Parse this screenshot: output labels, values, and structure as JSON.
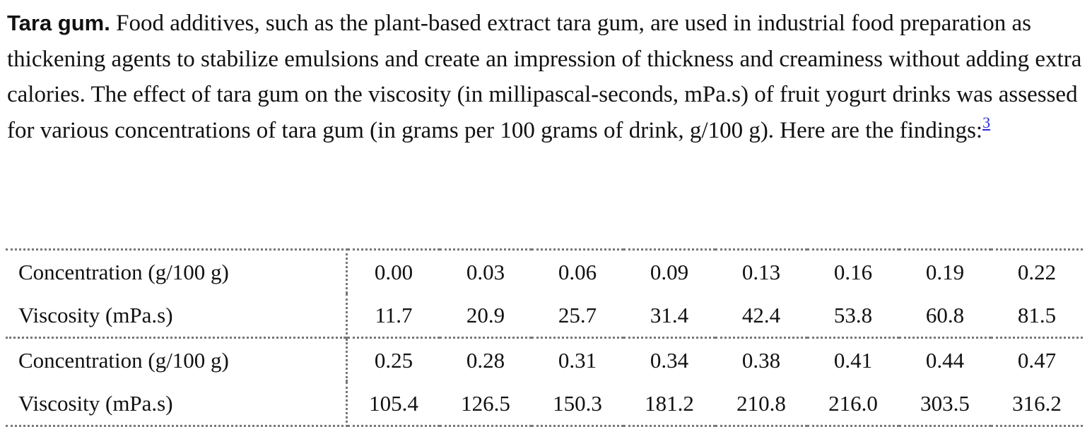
{
  "document": {
    "heading": "Tara gum.",
    "body_text": "Food additives, such as the plant-based extract tara gum, are used in industrial food preparation as thickening agents to stabilize emulsions and create an impression of thickness and creaminess without adding extra calories. The effect of tara gum on the viscosity (in millipascal-seconds, mPa.s) of fruit yogurt drinks was assessed for various concentrations of tara gum (in grams per 100 grams of drink, g/100 g). Here are the findings:",
    "footnote_marker": "3"
  },
  "table": {
    "groups": [
      {
        "rows": [
          {
            "label": "Concentration (g/100 g)",
            "values": [
              "0.00",
              "0.03",
              "0.06",
              "0.09",
              "0.13",
              "0.16",
              "0.19",
              "0.22"
            ]
          },
          {
            "label": "Viscosity (mPa.s)",
            "values": [
              "11.7",
              "20.9",
              "25.7",
              "31.4",
              "42.4",
              "53.8",
              "60.8",
              "81.5"
            ]
          }
        ]
      },
      {
        "rows": [
          {
            "label": "Concentration (g/100 g)",
            "values": [
              "0.25",
              "0.28",
              "0.31",
              "0.34",
              "0.38",
              "0.41",
              "0.44",
              "0.47"
            ]
          },
          {
            "label": "Viscosity (mPa.s)",
            "values": [
              "105.4",
              "126.5",
              "150.3",
              "181.2",
              "210.8",
              "216.0",
              "303.5",
              "316.2"
            ]
          }
        ]
      }
    ]
  },
  "colors": {
    "text": "#111111",
    "link": "#2a2ae0",
    "rule": "#777777"
  }
}
